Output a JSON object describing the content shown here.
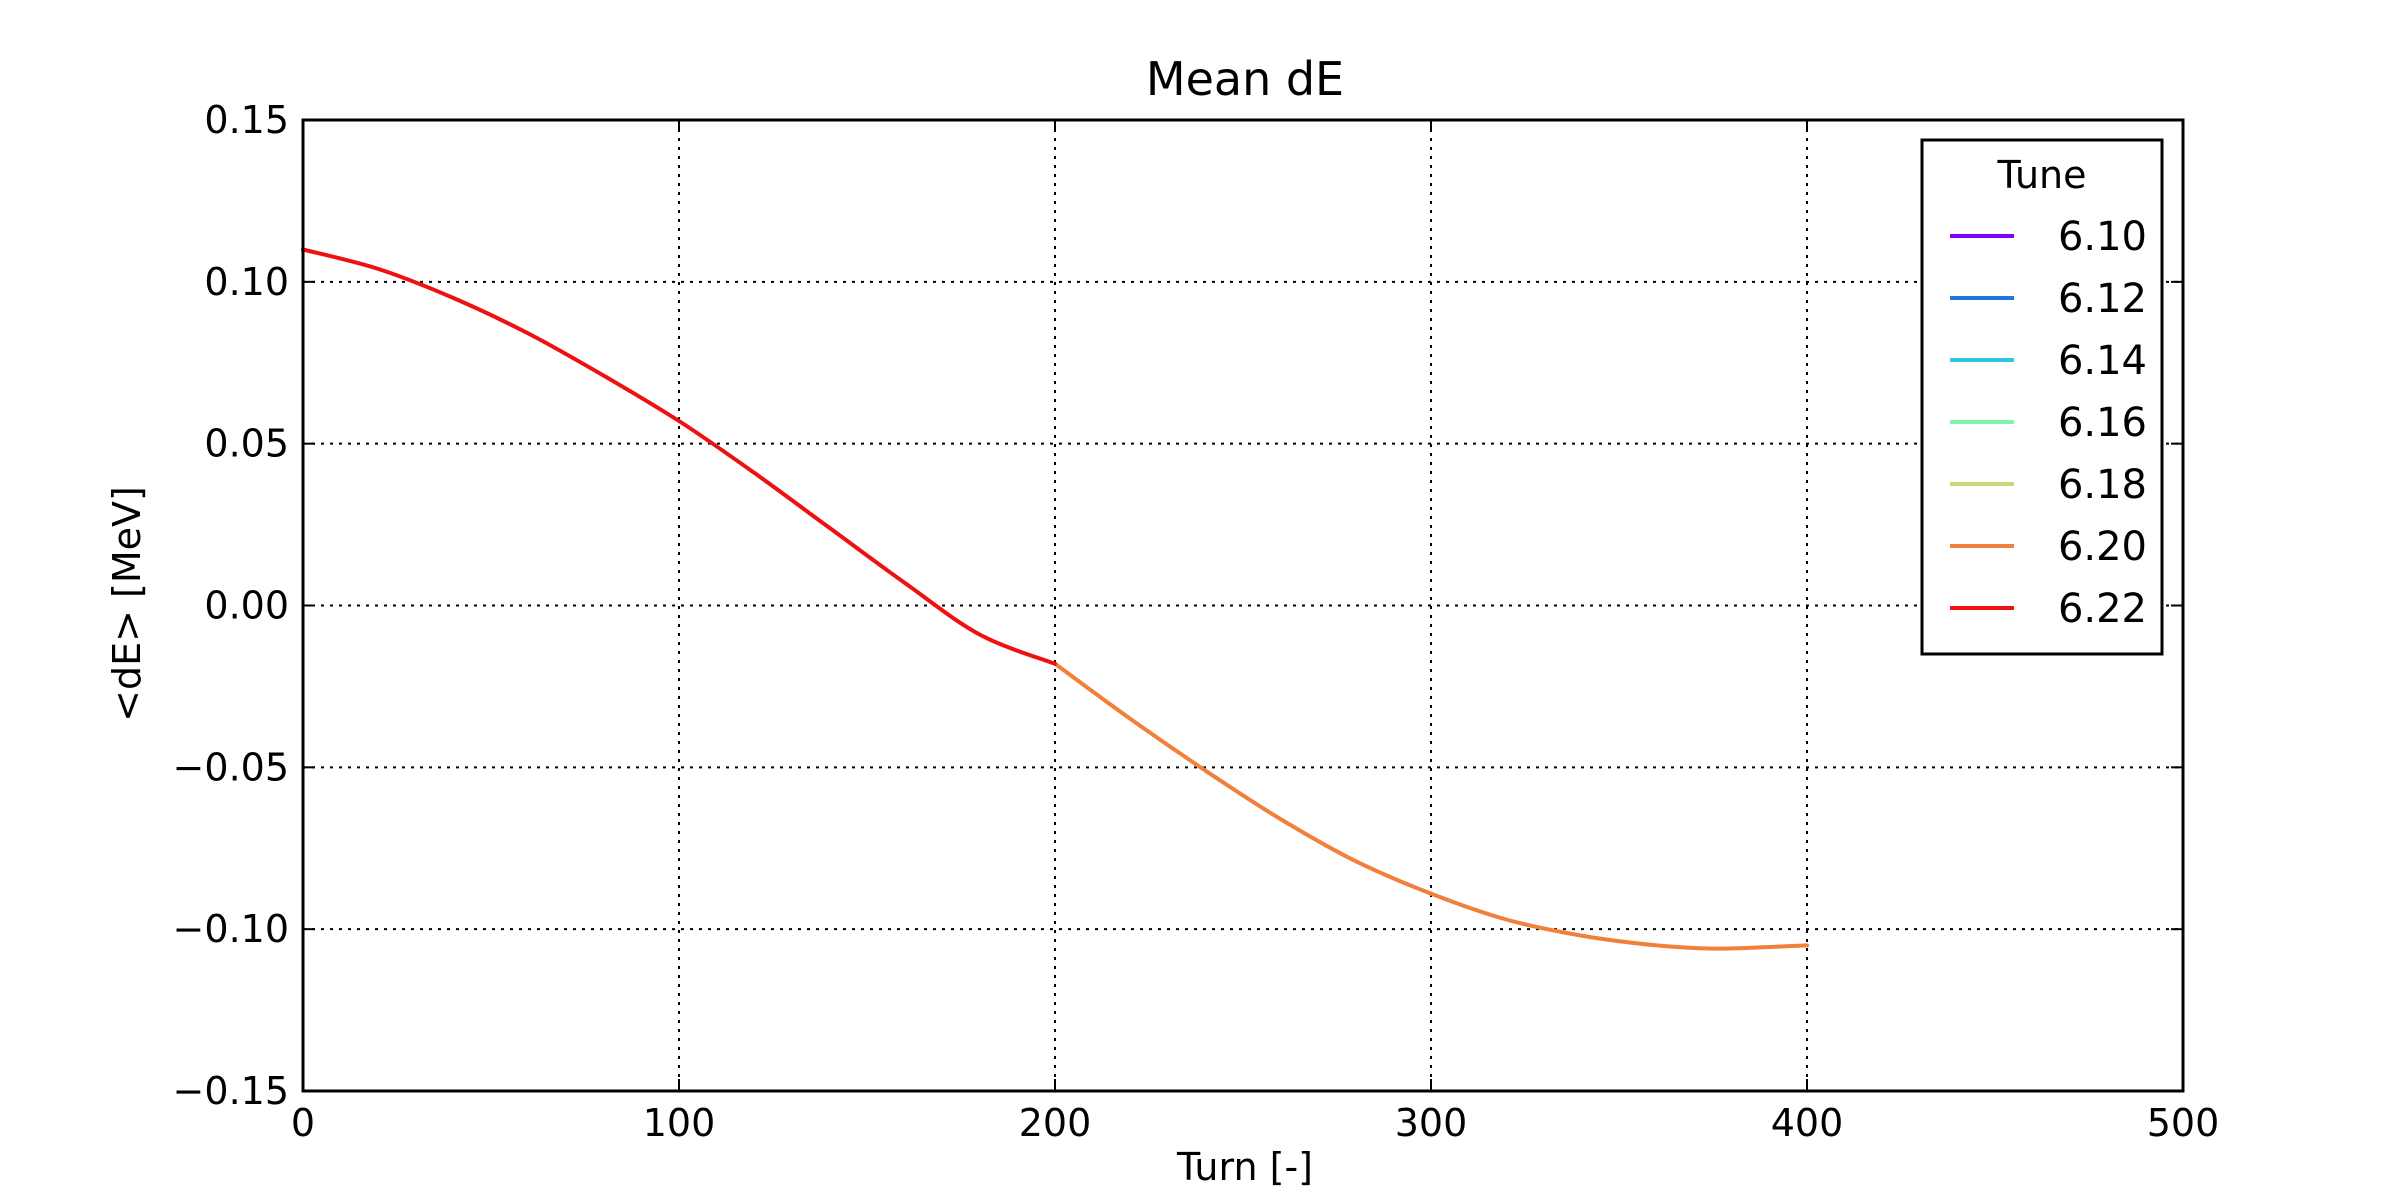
{
  "chart_data": {
    "type": "line",
    "title": "Mean dE",
    "xlabel": "Turn [-]",
    "ylabel": "<dE> [MeV]",
    "xlim": [
      0,
      500
    ],
    "ylim": [
      -0.15,
      0.15
    ],
    "x_ticks": [
      0,
      100,
      200,
      300,
      400,
      500
    ],
    "x_tick_labels": [
      "0",
      "100",
      "200",
      "300",
      "400",
      "500"
    ],
    "y_ticks": [
      -0.15,
      -0.1,
      -0.05,
      0.0,
      0.05,
      0.1,
      0.15
    ],
    "y_tick_labels": [
      "−0.15",
      "−0.10",
      "−0.05",
      "0.00",
      "0.05",
      "0.10",
      "0.15"
    ],
    "grid": true,
    "legend": {
      "title": "Tune",
      "position": "top-right"
    },
    "series": [
      {
        "name": "6.10",
        "color": "#8000ff",
        "x": [],
        "y": []
      },
      {
        "name": "6.12",
        "color": "#1f78e0",
        "x": [],
        "y": []
      },
      {
        "name": "6.14",
        "color": "#2cc8e0",
        "x": [],
        "y": []
      },
      {
        "name": "6.16",
        "color": "#80f5b0",
        "x": [],
        "y": []
      },
      {
        "name": "6.18",
        "color": "#cfd67a",
        "x": [],
        "y": []
      },
      {
        "name": "6.20",
        "color": "#f0803a",
        "x": [
          200,
          220,
          240,
          260,
          280,
          300,
          320,
          340,
          360,
          375,
          390,
          400
        ],
        "y": [
          -0.018,
          -0.035,
          -0.051,
          -0.066,
          -0.079,
          -0.089,
          -0.097,
          -0.102,
          -0.105,
          -0.106,
          -0.1055,
          -0.105
        ]
      },
      {
        "name": "6.22",
        "color": "#ee1111",
        "x": [
          0,
          20,
          40,
          60,
          80,
          100,
          120,
          140,
          160,
          180,
          200
        ],
        "y": [
          0.11,
          0.104,
          0.095,
          0.084,
          0.071,
          0.057,
          0.041,
          0.024,
          0.007,
          -0.009,
          -0.018
        ]
      }
    ]
  }
}
